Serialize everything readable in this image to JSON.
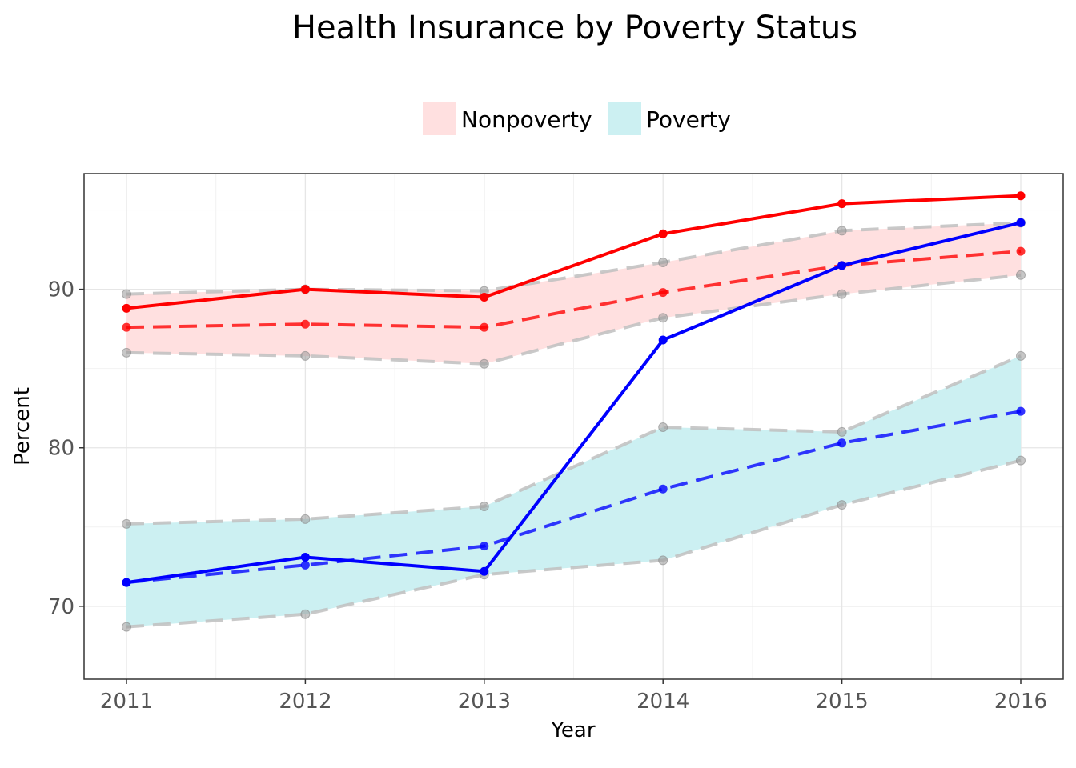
{
  "chart_data": {
    "type": "line",
    "title": "Health Insurance by Poverty Status",
    "xlabel": "Year",
    "ylabel": "Percent",
    "x": [
      2011,
      2012,
      2013,
      2014,
      2015,
      2016
    ],
    "x_ticks": [
      "2011",
      "2012",
      "2013",
      "2014",
      "2015",
      "2016"
    ],
    "y_ticks": [
      "70",
      "80",
      "90"
    ],
    "ylim": [
      65.4,
      97.3
    ],
    "grid": true,
    "legend_position": "top",
    "legend": [
      {
        "label": "Nonpoverty",
        "color": "#ffe0e0"
      },
      {
        "label": "Poverty",
        "color": "#ccf0f2"
      }
    ],
    "bands": [
      {
        "name": "Nonpoverty",
        "lower": [
          86.0,
          85.8,
          85.3,
          88.2,
          89.7,
          90.9
        ],
        "upper": [
          89.7,
          90.0,
          89.9,
          91.7,
          93.7,
          94.2
        ]
      },
      {
        "name": "Poverty",
        "lower": [
          68.7,
          69.5,
          72.0,
          72.9,
          76.4,
          79.2
        ],
        "upper": [
          75.2,
          75.5,
          76.3,
          81.3,
          81.0,
          85.8
        ]
      }
    ],
    "series": [
      {
        "name": "Nonpoverty",
        "style": "solid",
        "values": [
          88.8,
          90.0,
          89.5,
          93.5,
          95.4,
          95.9
        ]
      },
      {
        "name": "Nonpoverty",
        "style": "dashed",
        "values": [
          87.6,
          87.8,
          87.6,
          89.8,
          91.5,
          92.4
        ]
      },
      {
        "name": "Poverty",
        "style": "solid",
        "values": [
          71.5,
          73.1,
          72.2,
          86.8,
          91.5,
          94.2
        ]
      },
      {
        "name": "Poverty",
        "style": "dashed",
        "values": [
          71.5,
          72.6,
          73.8,
          77.4,
          80.3,
          82.3
        ]
      }
    ],
    "colors": {
      "nonpoverty_line": "#ff0000",
      "poverty_line": "#0000ff",
      "band_edge": "#bfbfbf"
    }
  }
}
